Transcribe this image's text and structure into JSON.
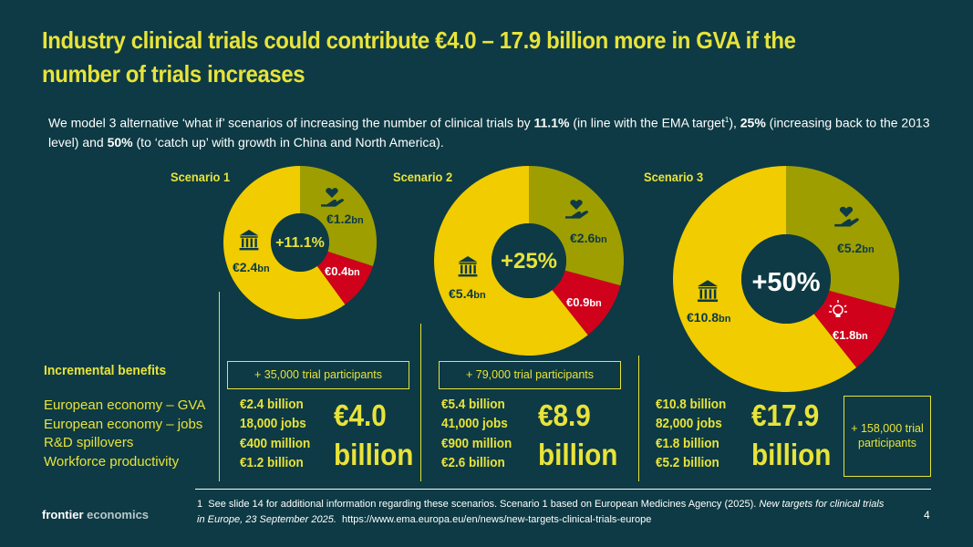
{
  "title": "Industry clinical trials could contribute €4.0 – 17.9 billion more in GVA if the number of trials increases",
  "intro": {
    "p1": "We model 3 alternative ‘what if’ scenarios of increasing the number of clinical trials by ",
    "b1": "11.1%",
    "p2": " (in line with the EMA target",
    "sup": "1",
    "p3": "), ",
    "b2": "25%",
    "p4": " (increasing back to the 2013 level) and ",
    "b3": "50%",
    "p5": " (to ‘catch up’ with growth in China and North America)."
  },
  "colors": {
    "background": "#0d3a44",
    "yellow": "#e8e33a",
    "donut_yellow": "#f0cc00",
    "olive": "#9e9e00",
    "red": "#d0021b"
  },
  "scenarios": [
    {
      "label": "Scenario 1",
      "center": "+11.1%",
      "gva": "€2.4",
      "productivity": "€1.2",
      "jobs": "€0.4",
      "unit": "bn",
      "slices": [
        {
          "name": "productivity",
          "value": 1.2
        },
        {
          "name": "jobs",
          "value": 0.4
        },
        {
          "name": "gva",
          "value": 2.4
        }
      ],
      "participants": "+ 35,000 trial participants",
      "values": [
        "€2.4 billion",
        "18,000 jobs",
        "€400 million",
        "€1.2 billion"
      ],
      "total_num": "€4.0",
      "total_unit": "billion"
    },
    {
      "label": "Scenario 2",
      "center": "+25%",
      "gva": "€5.4",
      "productivity": "€2.6",
      "jobs": "€0.9",
      "unit": "bn",
      "slices": [
        {
          "name": "productivity",
          "value": 2.6
        },
        {
          "name": "jobs",
          "value": 0.9
        },
        {
          "name": "gva",
          "value": 5.4
        }
      ],
      "participants": "+ 79,000 trial participants",
      "values": [
        "€5.4 billion",
        "41,000 jobs",
        "€900 million",
        "€2.6 billion"
      ],
      "total_num": "€8.9",
      "total_unit": "billion"
    },
    {
      "label": "Scenario 3",
      "center": "+50%",
      "gva": "€10.8",
      "productivity": "€5.2",
      "jobs": "€1.8",
      "unit": "bn",
      "slices": [
        {
          "name": "productivity",
          "value": 5.2
        },
        {
          "name": "jobs",
          "value": 1.8
        },
        {
          "name": "gva",
          "value": 10.8
        }
      ],
      "participants_l1": "+ 158,000 trial",
      "participants_l2": "participants",
      "values": [
        "€10.8 billion",
        "82,000 jobs",
        "€1.8 billion",
        "€5.2 billion"
      ],
      "total_num": "€17.9",
      "total_unit": "billion"
    }
  ],
  "benefits": {
    "heading": "Incremental benefits",
    "items": [
      "European economy – GVA",
      "European economy – jobs",
      "R&D spillovers",
      "Workforce productivity"
    ]
  },
  "footer": {
    "logo_bold": "frontier",
    "logo_light": "economics",
    "note_num": "1",
    "note_text": "See slide 14 for additional information regarding these scenarios. Scenario 1 based on European Medicines Agency (2025). ",
    "note_italic": "New targets for clinical trials in Europe, 23 September 2025.",
    "note_url": "https://www.ema.europa.eu/en/news/new-targets-clinical-trials-europe",
    "page": "4"
  }
}
